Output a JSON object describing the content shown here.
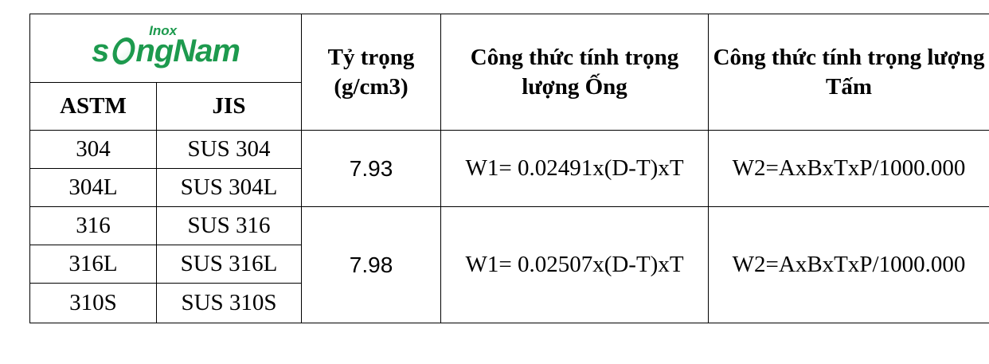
{
  "logo": {
    "text_s": "s",
    "text_rest": "ngNam",
    "text_small": "Inox",
    "brand_color": "#1d9a4e",
    "icon": "ring-o-icon"
  },
  "headers": {
    "density": "Tỷ trọng (g/cm3)",
    "pipe_formula": "Công thức tính trọng lượng Ống",
    "sheet_formula": "Công thức tính trọng lượng Tấm",
    "astm": "ASTM",
    "jis": "JIS"
  },
  "groups": [
    {
      "density": "7.93",
      "pipe_formula": "W1= 0.02491x(D-T)xT",
      "sheet_formula": "W2=AxBxTxP/1000.000",
      "grades": [
        {
          "astm": "304",
          "jis": "SUS 304"
        },
        {
          "astm": "304L",
          "jis": "SUS 304L"
        }
      ]
    },
    {
      "density": "7.98",
      "pipe_formula": "W1= 0.02507x(D-T)xT",
      "sheet_formula": "W2=AxBxTxP/1000.000",
      "grades": [
        {
          "astm": "316",
          "jis": "SUS 316"
        },
        {
          "astm": "316L",
          "jis": "SUS 316L"
        },
        {
          "astm": "310S",
          "jis": "SUS 310S"
        }
      ]
    }
  ]
}
